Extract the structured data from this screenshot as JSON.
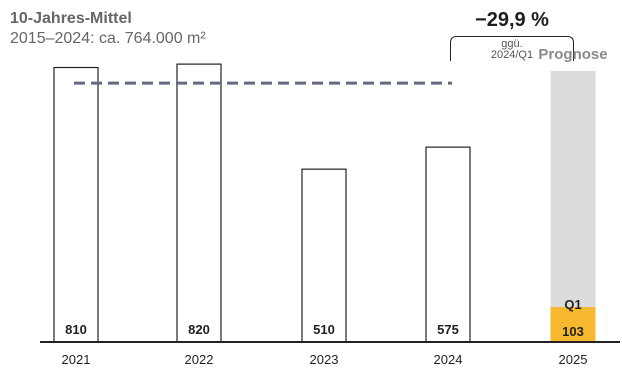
{
  "header": {
    "avg_title": "10-Jahres-Mittel",
    "avg_subtitle": "2015–2024: ca. 764.000 m²",
    "change_value": "−29,9 %",
    "change_note_line1": "ggü.",
    "change_note_line2": "2024/Q1"
  },
  "chart_data": {
    "type": "bar",
    "categories": [
      "2021",
      "2022",
      "2023",
      "2024",
      "2025"
    ],
    "values": [
      810,
      820,
      510,
      575,
      103
    ],
    "value_labels": [
      "810",
      "820",
      "510",
      "575",
      "103"
    ],
    "reference_line": {
      "value": 764
    },
    "forecast": {
      "category": "2025",
      "label": "Prognose",
      "value": 800,
      "partial_label": "Q1"
    },
    "ylim": [
      0,
      900
    ],
    "grid": false,
    "colors": {
      "bar_fill": "#ffffff",
      "bar_stroke": "#222222",
      "forecast_fill": "#dcdcdc",
      "partial_fill": "#f5b82e",
      "reference_line": "#666a80",
      "axis": "#222222",
      "forecast_text": "#8a8a8a"
    }
  }
}
